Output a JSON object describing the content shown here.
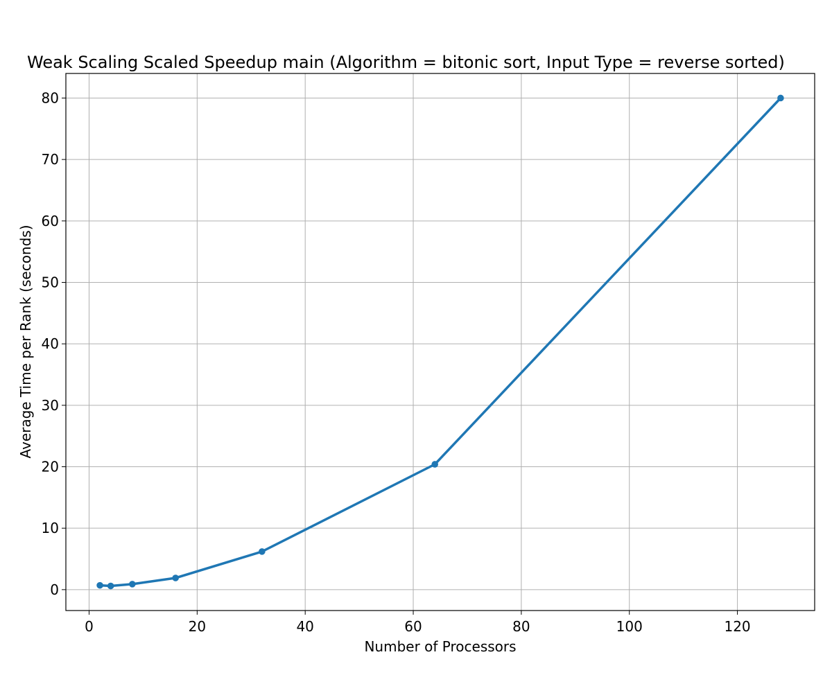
{
  "chart_data": {
    "type": "line",
    "title": "Weak Scaling Scaled Speedup main (Algorithm = bitonic sort, Input Type = reverse sorted)",
    "xlabel": "Number of Processors",
    "ylabel": "Average Time per Rank (seconds)",
    "xlim": [
      -4.3,
      134.3
    ],
    "ylim": [
      -3.4,
      84
    ],
    "xticks": [
      0,
      20,
      40,
      60,
      80,
      100,
      120
    ],
    "yticks": [
      0,
      10,
      20,
      30,
      40,
      50,
      60,
      70,
      80
    ],
    "grid": true,
    "series": [
      {
        "color": "#1f77b4",
        "x": [
          2,
          4,
          8,
          16,
          32,
          64,
          128
        ],
        "y": [
          0.7,
          0.6,
          0.9,
          1.9,
          6.2,
          20.4,
          80.0
        ]
      }
    ]
  }
}
